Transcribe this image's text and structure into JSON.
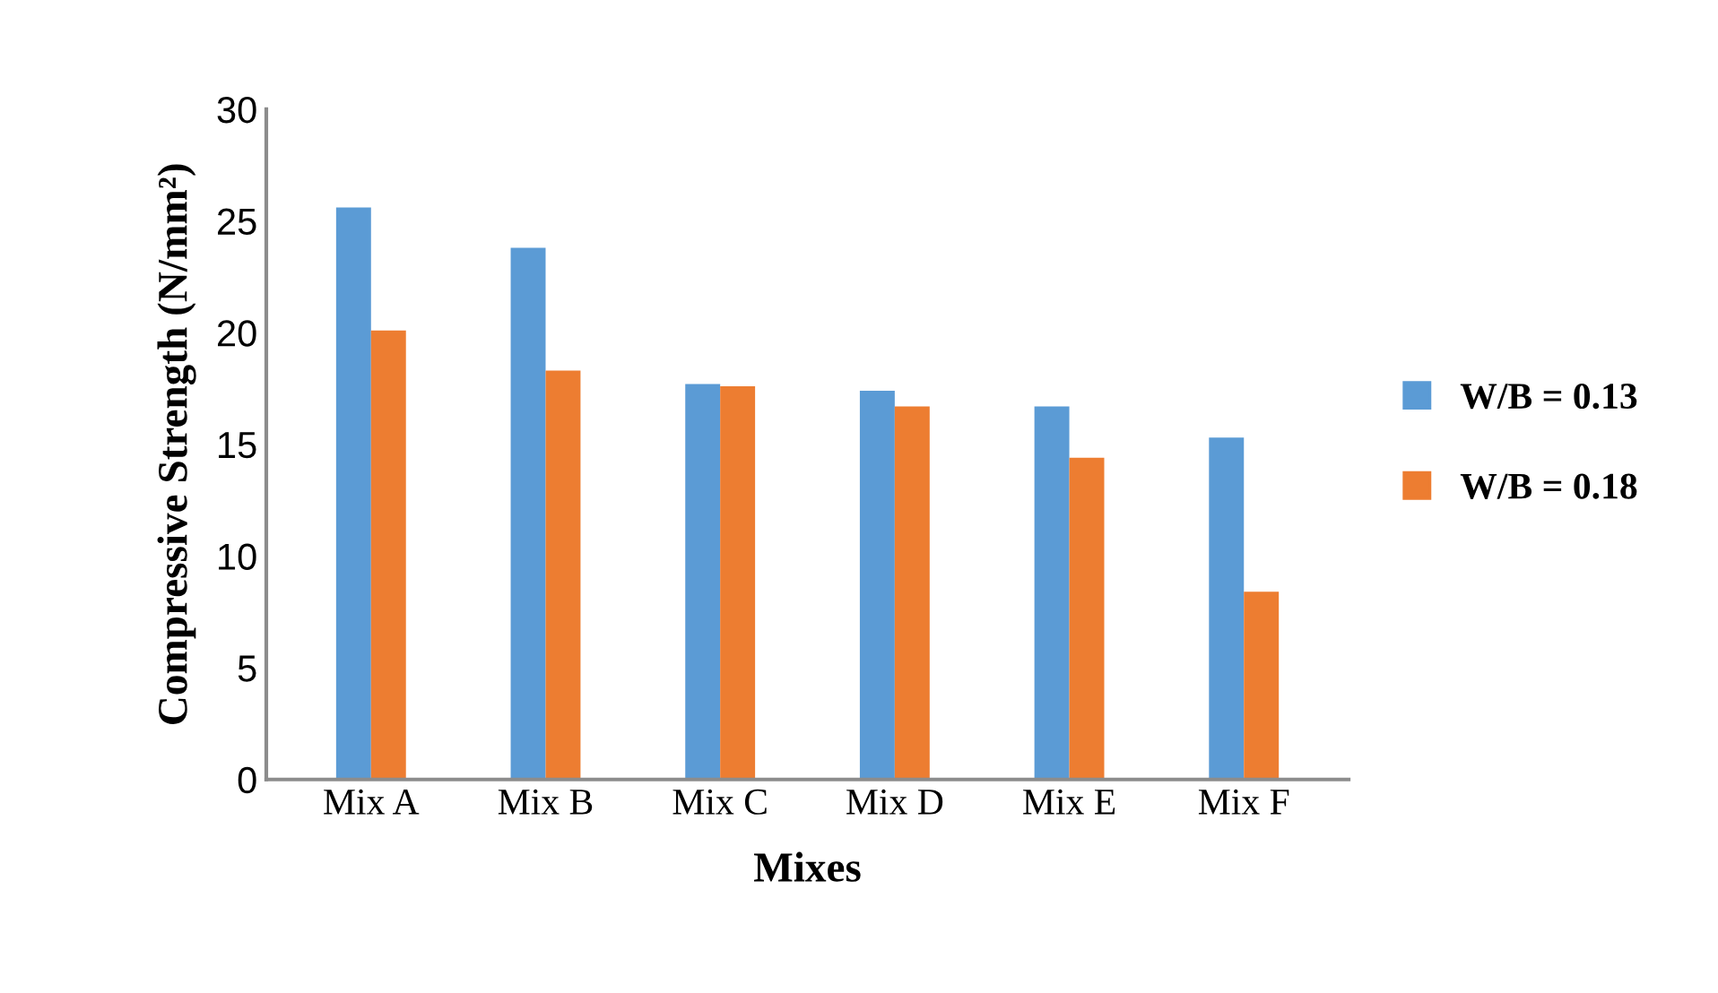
{
  "chart_data": {
    "type": "bar",
    "xlabel": "Mixes",
    "ylabel": "Compressive Strength (N/mm²)",
    "categories": [
      "Mix A",
      "Mix B",
      "Mix C",
      "Mix D",
      "Mix E",
      "Mix F"
    ],
    "series": [
      {
        "name": "W/B = 0.13",
        "color": "#5b9bd5",
        "values": [
          25.6,
          23.8,
          17.7,
          17.4,
          16.7,
          15.3
        ]
      },
      {
        "name": "W/B = 0.18",
        "color": "#ed7d31",
        "values": [
          20.1,
          18.3,
          17.6,
          16.7,
          14.4,
          8.4
        ]
      }
    ],
    "ylim": [
      0,
      30
    ],
    "yticks": [
      0,
      5,
      10,
      15,
      20,
      25,
      30
    ],
    "grid": false,
    "legend": "right"
  }
}
